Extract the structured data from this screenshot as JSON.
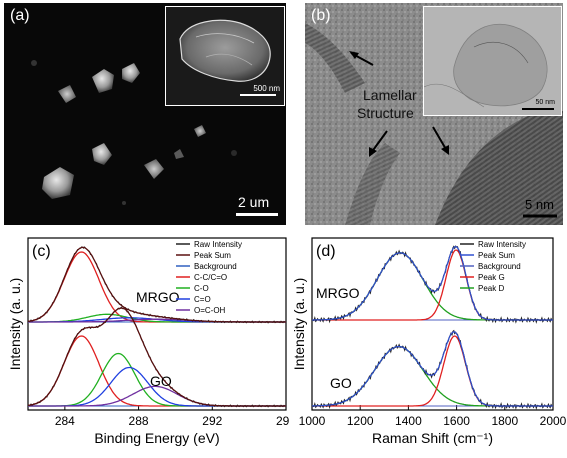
{
  "panel_a": {
    "label": "(a)",
    "scale_bar": "2 um",
    "inset_scale_bar": "500 nm"
  },
  "panel_b": {
    "label": "(b)",
    "annotation_line1": "Lamellar",
    "annotation_line2": "Structure",
    "scale_bar": "5 nm",
    "inset_scale_bar": "50 nm"
  },
  "chart_data": [
    {
      "panel": "(c)",
      "type": "line",
      "xlabel": "Binding Energy (eV)",
      "ylabel": "Intensity (a. u.)",
      "xlim": [
        282,
        296
      ],
      "xticks": [
        284,
        288,
        292,
        296
      ],
      "legend_position": "top-right",
      "legend": [
        {
          "name": "Raw Intensity",
          "color": "#222222"
        },
        {
          "name": "Peak Sum",
          "color": "#5a1010"
        },
        {
          "name": "Background",
          "color": "#3060c0"
        },
        {
          "name": "C-C/C=O",
          "color": "#e02020"
        },
        {
          "name": "C-O",
          "color": "#20b020"
        },
        {
          "name": "C=O",
          "color": "#2040e0"
        },
        {
          "name": "O=C-OH",
          "color": "#7030a0"
        }
      ],
      "traces": [
        {
          "label": "MRGO",
          "components": [
            {
              "name": "C-C/C=O",
              "center": 284.9,
              "height": 1.0,
              "width": 0.95
            },
            {
              "name": "C-O",
              "center": 286.3,
              "height": 0.11,
              "width": 1.1
            },
            {
              "name": "C=O",
              "center": 287.5,
              "height": 0.06,
              "width": 1.5
            },
            {
              "name": "O=C-OH",
              "center": 289.0,
              "height": 0.04,
              "width": 1.6
            }
          ]
        },
        {
          "label": "GO",
          "components": [
            {
              "name": "C-C/C=O",
              "center": 284.9,
              "height": 1.0,
              "width": 0.95
            },
            {
              "name": "C-O",
              "center": 286.9,
              "height": 0.75,
              "width": 0.9
            },
            {
              "name": "C=O",
              "center": 287.5,
              "height": 0.55,
              "width": 1.0
            },
            {
              "name": "O=C-OH",
              "center": 288.9,
              "height": 0.28,
              "width": 1.2
            }
          ]
        }
      ]
    },
    {
      "panel": "(d)",
      "type": "line",
      "xlabel": "Raman Shift (cm⁻¹)",
      "ylabel": "Intensity (a. u.)",
      "xlim": [
        1000,
        2000
      ],
      "xticks": [
        1000,
        1200,
        1400,
        1600,
        1800,
        2000
      ],
      "legend_position": "top-right",
      "legend": [
        {
          "name": "Raw Intensity",
          "color": "#222222"
        },
        {
          "name": "Peak Sum",
          "color": "#3050d0"
        },
        {
          "name": "Background",
          "color": "#5060c0"
        },
        {
          "name": "Peak G",
          "color": "#e02020"
        },
        {
          "name": "Peak D",
          "color": "#20a020"
        }
      ],
      "traces": [
        {
          "label": "MRGO",
          "components": [
            {
              "name": "Peak D",
              "center": 1365,
              "height": 0.96,
              "width": 95
            },
            {
              "name": "Peak G",
              "center": 1598,
              "height": 1.0,
              "width": 42
            }
          ]
        },
        {
          "label": "GO",
          "components": [
            {
              "name": "Peak D",
              "center": 1360,
              "height": 0.85,
              "width": 100
            },
            {
              "name": "Peak G",
              "center": 1592,
              "height": 1.0,
              "width": 45
            }
          ]
        }
      ]
    }
  ]
}
